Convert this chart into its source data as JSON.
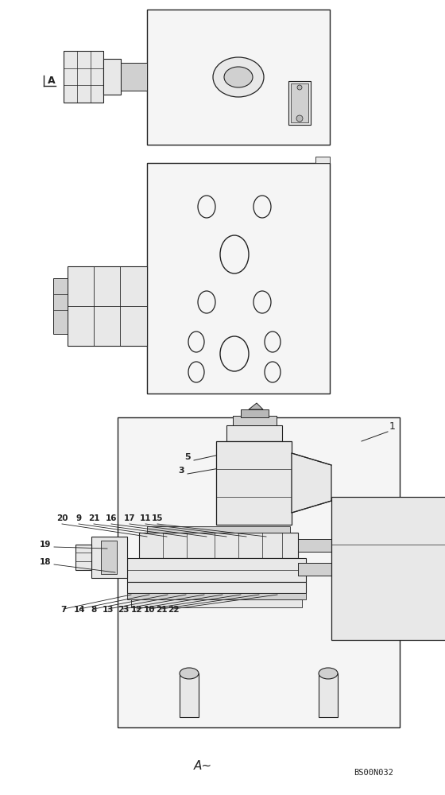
{
  "bg_color": "#ffffff",
  "lc": "#222222",
  "fc_body": "#f5f5f5",
  "fc_part": "#e8e8e8",
  "fc_dark": "#d0d0d0",
  "fc_darker": "#b8b8b8",
  "annotation_A": "A",
  "ref_code": "BS00N032"
}
